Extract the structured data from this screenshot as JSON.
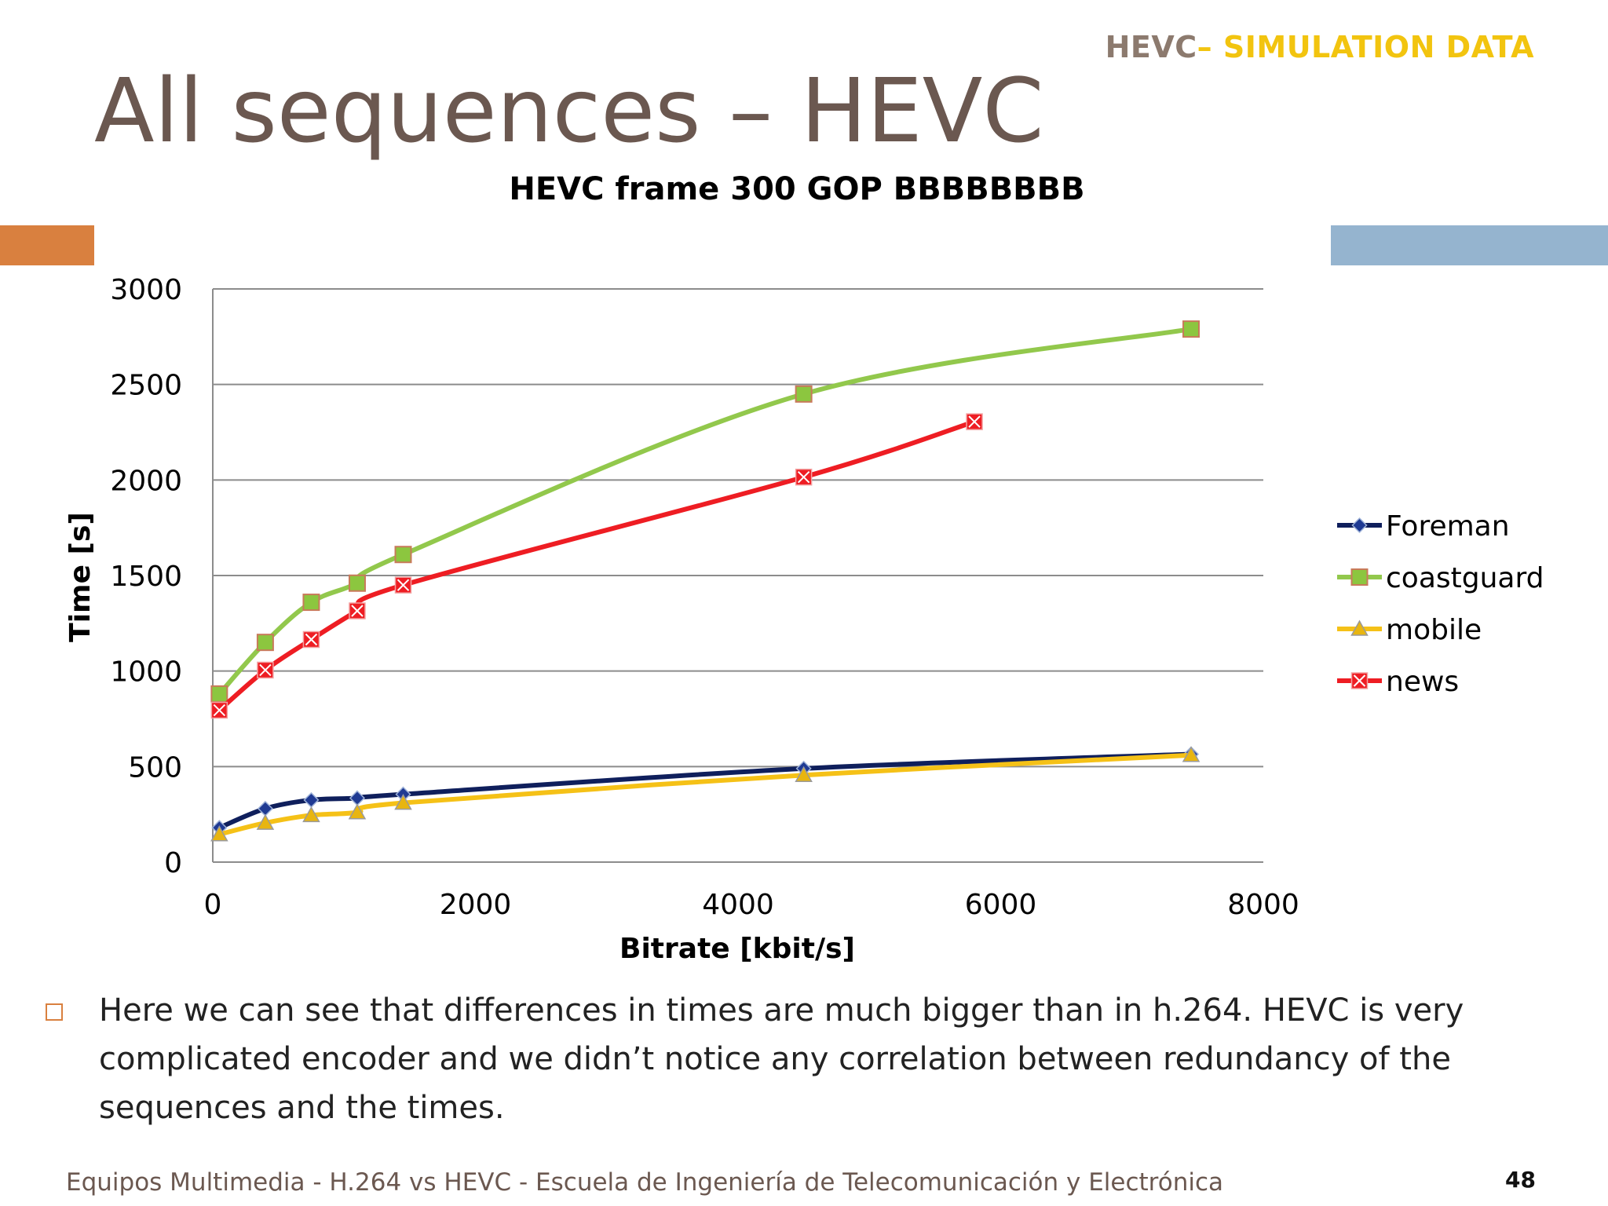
{
  "header": {
    "tag_part1": "HEVC",
    "tag_part2": "– SIMULATION DATA",
    "title": "All sequences – HEVC"
  },
  "chart_data": {
    "type": "line",
    "title": "HEVC frame 300 GOP BBBBBBBB",
    "xlabel": "Bitrate [kbit/s]",
    "ylabel": "Time [s]",
    "xlim": [
      0,
      8000
    ],
    "ylim": [
      0,
      3000
    ],
    "x_ticks": [
      0,
      2000,
      4000,
      6000,
      8000
    ],
    "y_ticks": [
      0,
      500,
      1000,
      1500,
      2000,
      2500,
      3000
    ],
    "grid": "horizontal",
    "legend_position": "right",
    "series": [
      {
        "name": "Foreman",
        "color": "#0f1f5c",
        "marker": "diamond",
        "points": [
          [
            50,
            180
          ],
          [
            400,
            280
          ],
          [
            750,
            325
          ],
          [
            1100,
            335
          ],
          [
            1450,
            355
          ],
          [
            4500,
            490
          ],
          [
            7450,
            565
          ]
        ]
      },
      {
        "name": "coastguard",
        "color": "#92c84c",
        "marker": "square",
        "points": [
          [
            50,
            880
          ],
          [
            400,
            1150
          ],
          [
            750,
            1360
          ],
          [
            1100,
            1460
          ],
          [
            1450,
            1610
          ],
          [
            4500,
            2450
          ],
          [
            7450,
            2790
          ]
        ]
      },
      {
        "name": "mobile",
        "color": "#f5c117",
        "marker": "triangle",
        "points": [
          [
            50,
            145
          ],
          [
            400,
            205
          ],
          [
            750,
            245
          ],
          [
            1100,
            260
          ],
          [
            1450,
            310
          ],
          [
            4500,
            455
          ],
          [
            7450,
            560
          ]
        ]
      },
      {
        "name": "news",
        "color": "#ee1d23",
        "marker": "x-square",
        "points": [
          [
            50,
            795
          ],
          [
            400,
            1005
          ],
          [
            750,
            1165
          ],
          [
            1100,
            1315
          ],
          [
            1450,
            1450
          ],
          [
            4500,
            2015
          ],
          [
            5800,
            2305
          ]
        ]
      }
    ]
  },
  "bullet": {
    "text": "Here we can see that differences in times are much bigger than in h.264. HEVC is very complicated encoder and we didn’t notice any correlation between redundancy of the sequences and the times."
  },
  "footer": {
    "text": "Equipos Multimedia - H.264 vs HEVC - Escuela de Ingeniería de Telecomunicación y Electrónica",
    "page": "48"
  }
}
